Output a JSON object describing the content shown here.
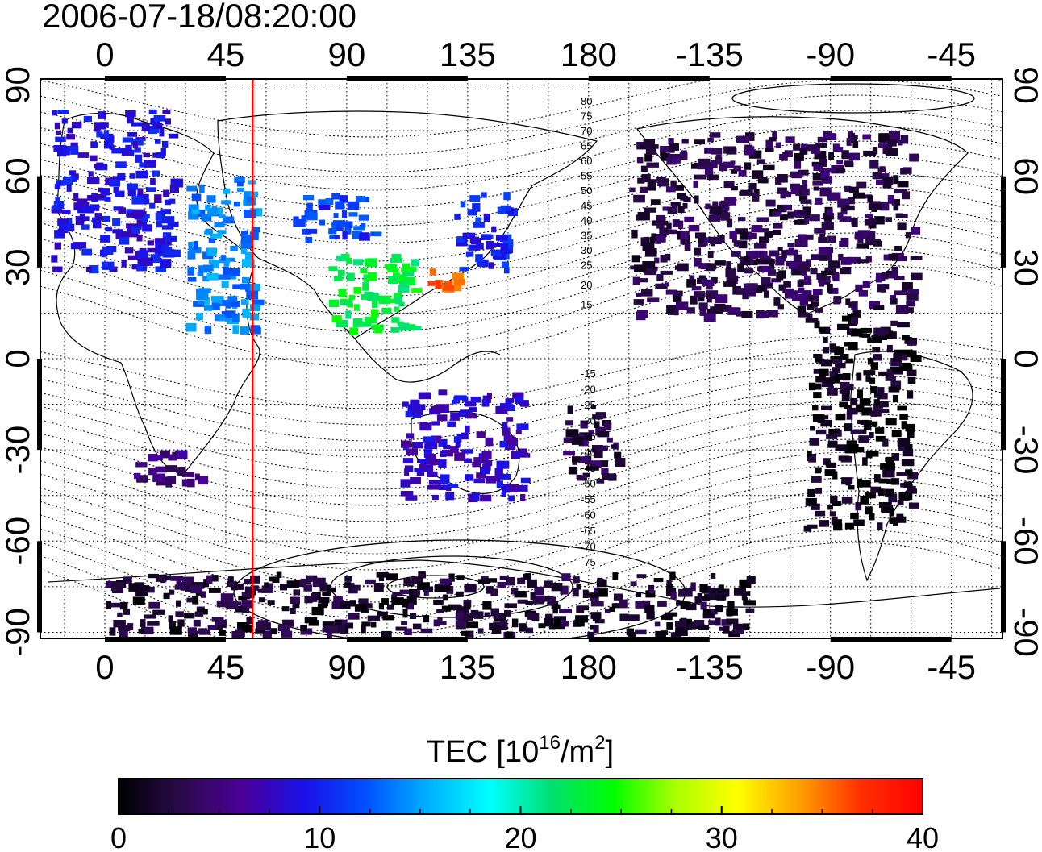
{
  "title": "2006-07-18/08:20:00",
  "map": {
    "lon_ticks": [
      "0",
      "45",
      "90",
      "135",
      "180",
      "-135",
      "-90",
      "-45"
    ],
    "lat_ticks": [
      "90",
      "60",
      "30",
      "0",
      "-30",
      "-60",
      "-90"
    ],
    "lon_tick_values": [
      0,
      45,
      90,
      135,
      180,
      225,
      270,
      315
    ],
    "lat_tick_values": [
      90,
      60,
      30,
      0,
      -30,
      -60,
      -90
    ],
    "lon_range": [
      -24,
      334
    ],
    "lat_range": [
      -92,
      92
    ],
    "grid": true,
    "marker_longitude": 55,
    "marker_color": "#ff0000"
  },
  "contours": {
    "labels_north": [
      "80",
      "75",
      "70",
      "65",
      "60",
      "55",
      "50",
      "45",
      "40",
      "35",
      "30",
      "25",
      "20",
      "15"
    ],
    "labels_south": [
      "-15",
      "-20",
      "-25",
      "-30",
      "-35",
      "-40",
      "-45",
      "-50",
      "-55",
      "-60",
      "-65",
      "-70",
      "-75"
    ]
  },
  "colorbar": {
    "label_prefix": "TEC  [10",
    "label_exp1": "16",
    "label_mid": "/m",
    "label_exp2": "2",
    "label_suffix": "]",
    "ticks": [
      "0",
      "10",
      "20",
      "30",
      "40"
    ],
    "tick_values": [
      0,
      10,
      20,
      30,
      40
    ],
    "range": [
      0,
      40
    ],
    "colors": [
      "#000000",
      "#2a0a4a",
      "#4b0099",
      "#1a10e8",
      "#0050ff",
      "#00b0ff",
      "#00ffff",
      "#00e070",
      "#00ff00",
      "#aaff00",
      "#ffff00",
      "#ffa000",
      "#ff3000",
      "#ff0000"
    ]
  },
  "chart_data": {
    "type": "heatmap",
    "title": "2006-07-18/08:20:00",
    "value_label": "TEC  [10^16/m^2]",
    "zlim": [
      0,
      40
    ],
    "regions": [
      {
        "lon": [
          -20,
          25
        ],
        "lat": [
          30,
          82
        ],
        "tec": 9
      },
      {
        "lon": [
          30,
          55
        ],
        "lat": [
          10,
          60
        ],
        "tec": 14
      },
      {
        "lon": [
          70,
          100
        ],
        "lat": [
          40,
          55
        ],
        "tec": 11
      },
      {
        "lon": [
          83,
          115
        ],
        "lat": [
          10,
          35
        ],
        "tec": 23
      },
      {
        "lon": [
          120,
          130
        ],
        "lat": [
          22,
          30
        ],
        "tec": 36
      },
      {
        "lon": [
          130,
          150
        ],
        "lat": [
          30,
          55
        ],
        "tec": 10
      },
      {
        "lon": [
          195,
          300
        ],
        "lat": [
          15,
          75
        ],
        "tec": 3
      },
      {
        "lon": [
          260,
          300
        ],
        "lat": [
          -55,
          15
        ],
        "tec": 1
      },
      {
        "lon": [
          170,
          190
        ],
        "lat": [
          -40,
          -15
        ],
        "tec": 3
      },
      {
        "lon": [
          110,
          155
        ],
        "lat": [
          -45,
          -10
        ],
        "tec": 8
      },
      {
        "lon": [
          10,
          35
        ],
        "lat": [
          -40,
          -30
        ],
        "tec": 5
      },
      {
        "lon": [
          0,
          240
        ],
        "lat": [
          -90,
          -70
        ],
        "tec": 2
      }
    ]
  }
}
